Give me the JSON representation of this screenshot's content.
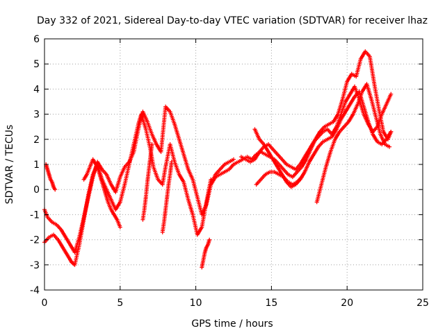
{
  "chart_data": {
    "type": "scatter",
    "title": "Day 332 of 2021, Sidereal Day-to-day VTEC variation (SDTVAR) for receiver lhaz",
    "xlabel": "GPS time / hours",
    "ylabel": "SDTVAR / TECUs",
    "xlim": [
      0,
      25
    ],
    "ylim": [
      -4,
      6
    ],
    "x_ticks": [
      "0",
      "5",
      "10",
      "15",
      "20",
      "25"
    ],
    "y_ticks": [
      "-4",
      "-3",
      "-2",
      "-1",
      "0",
      "1",
      "2",
      "3",
      "4",
      "5",
      "6"
    ],
    "grid": true,
    "marker": "+",
    "color": "#ff0000",
    "series": [
      {
        "x": [
          0.0,
          0.3,
          0.6,
          0.9,
          1.2,
          1.5,
          1.8,
          2.0,
          2.3,
          2.6,
          2.9,
          3.2,
          3.5,
          3.8,
          4.1,
          4.4,
          4.7,
          5.0,
          5.3,
          5.6,
          5.9,
          6.2,
          6.4,
          6.7,
          7.0,
          7.2,
          7.5,
          7.8,
          8.0,
          8.3,
          8.6,
          8.9,
          9.2,
          9.5,
          9.8,
          10.1,
          10.4,
          10.7,
          11.0
        ],
        "y": [
          -2.1,
          -1.9,
          -1.8,
          -2.0,
          -2.3,
          -2.6,
          -2.9,
          -3.0,
          -2.2,
          -1.2,
          -0.2,
          0.6,
          1.0,
          0.4,
          0.0,
          -0.4,
          -0.8,
          -0.5,
          0.2,
          1.0,
          1.8,
          2.6,
          3.0,
          2.4,
          1.6,
          0.9,
          0.4,
          0.2,
          0.9,
          1.8,
          1.1,
          0.6,
          0.3,
          -0.4,
          -1.0,
          -1.8,
          -1.5,
          -0.5,
          0.4
        ]
      },
      {
        "x": [
          0.0,
          0.2,
          0.5,
          0.8,
          1.1,
          1.4,
          1.7,
          2.0,
          2.3,
          2.6,
          2.9,
          3.2,
          3.5,
          3.8,
          4.1,
          4.4,
          4.7,
          5.0,
          5.3,
          5.6,
          5.9,
          6.2,
          6.5,
          6.8,
          7.1,
          7.4,
          7.7,
          8.0,
          8.3,
          8.6,
          8.9,
          9.2,
          9.5,
          9.8,
          10.1,
          10.4,
          10.7,
          11.0,
          11.3,
          11.6,
          11.9,
          12.2,
          12.5
        ],
        "y": [
          -0.8,
          -1.1,
          -1.3,
          -1.4,
          -1.6,
          -1.9,
          -2.2,
          -2.5,
          -1.9,
          -1.1,
          -0.3,
          0.5,
          1.1,
          0.8,
          0.6,
          0.2,
          -0.1,
          0.5,
          0.9,
          1.1,
          1.5,
          2.4,
          3.1,
          2.7,
          2.2,
          1.8,
          1.5,
          3.3,
          3.1,
          2.6,
          2.0,
          1.4,
          0.8,
          0.4,
          -0.3,
          -1.0,
          -0.6,
          0.2,
          0.6,
          0.8,
          1.0,
          1.1,
          1.2
        ]
      },
      {
        "x": [
          0.1,
          0.2,
          0.3,
          0.4,
          0.5,
          0.6,
          0.7
        ],
        "y": [
          1.0,
          0.8,
          0.6,
          0.4,
          0.3,
          0.1,
          0.0
        ]
      },
      {
        "x": [
          2.6,
          2.8,
          3.0,
          3.2,
          3.4,
          3.6,
          3.8,
          4.0,
          4.2,
          4.4,
          4.6,
          4.8,
          5.0
        ],
        "y": [
          0.4,
          0.6,
          0.9,
          1.2,
          1.0,
          0.7,
          0.3,
          -0.1,
          -0.5,
          -0.8,
          -1.0,
          -1.2,
          -1.5
        ]
      },
      {
        "x": [
          6.5,
          6.6,
          6.7,
          6.8,
          6.9,
          7.0,
          7.1
        ],
        "y": [
          -1.2,
          -0.8,
          -0.3,
          0.3,
          0.8,
          1.3,
          1.8
        ]
      },
      {
        "x": [
          7.8,
          7.9,
          8.0,
          8.1,
          8.2,
          8.3,
          8.4
        ],
        "y": [
          -1.7,
          -1.3,
          -0.8,
          -0.3,
          0.2,
          0.6,
          1.1
        ]
      },
      {
        "x": [
          10.4,
          10.5,
          10.6,
          10.7,
          10.8,
          10.9
        ],
        "y": [
          -3.1,
          -2.8,
          -2.5,
          -2.3,
          -2.2,
          -2.0
        ]
      },
      {
        "x": [
          11.0,
          11.3,
          11.6,
          11.9,
          12.2,
          12.5,
          12.8,
          13.1,
          13.4,
          13.7,
          14.0,
          14.3,
          14.6,
          14.9,
          15.2,
          15.5,
          15.8,
          16.1,
          16.4,
          16.7,
          17.0,
          17.3,
          17.6,
          17.9,
          18.2,
          18.5,
          18.8,
          19.1,
          19.4,
          19.7,
          20.0,
          20.3,
          20.6,
          20.9,
          21.2,
          21.5,
          21.8,
          22.1,
          22.4,
          22.7,
          22.9
        ],
        "y": [
          0.2,
          0.5,
          0.6,
          0.7,
          0.8,
          1.0,
          1.1,
          1.2,
          1.3,
          1.2,
          1.4,
          1.5,
          1.4,
          1.3,
          1.2,
          1.0,
          0.8,
          0.6,
          0.5,
          0.7,
          0.9,
          1.2,
          1.6,
          2.0,
          2.3,
          2.5,
          2.6,
          2.7,
          3.0,
          3.6,
          4.3,
          4.6,
          4.5,
          5.2,
          5.5,
          5.3,
          4.2,
          3.2,
          2.3,
          2.0,
          2.3
        ]
      },
      {
        "x": [
          13.0,
          13.3,
          13.6,
          13.9,
          14.2,
          14.5,
          14.8,
          15.1,
          15.4,
          15.7,
          16.0,
          16.3,
          16.6,
          16.9,
          17.2,
          17.5,
          17.8,
          18.1,
          18.4,
          18.7,
          19.0,
          19.3,
          19.6,
          19.9,
          20.2,
          20.5,
          20.8,
          21.1,
          21.4,
          21.7,
          22.0,
          22.3,
          22.6,
          22.9
        ],
        "y": [
          1.3,
          1.2,
          1.1,
          1.2,
          1.5,
          1.7,
          1.8,
          1.6,
          1.4,
          1.2,
          1.0,
          0.9,
          0.8,
          1.0,
          1.3,
          1.6,
          1.9,
          2.1,
          2.3,
          2.4,
          2.2,
          2.5,
          3.0,
          3.5,
          3.8,
          4.1,
          3.6,
          3.0,
          2.6,
          2.3,
          2.5,
          3.0,
          3.4,
          3.8
        ]
      },
      {
        "x": [
          13.9,
          14.2,
          14.5,
          14.8,
          15.1,
          15.4,
          15.7,
          16.0,
          16.3,
          16.6,
          16.9,
          17.2,
          17.5,
          17.8,
          18.1,
          18.4,
          18.7,
          19.0,
          19.3,
          19.6,
          19.9,
          20.2,
          20.5,
          20.8,
          21.1,
          21.4,
          21.7,
          22.0,
          22.3,
          22.6,
          22.9
        ],
        "y": [
          2.4,
          2.0,
          1.8,
          1.5,
          1.2,
          0.9,
          0.6,
          0.3,
          0.1,
          0.2,
          0.4,
          0.7,
          1.1,
          1.4,
          1.7,
          1.9,
          2.0,
          2.1,
          2.4,
          2.8,
          3.1,
          3.4,
          3.7,
          3.9,
          3.3,
          2.7,
          2.2,
          1.9,
          1.8,
          2.0,
          2.3
        ]
      },
      {
        "x": [
          14.0,
          14.3,
          14.6,
          14.9,
          15.2,
          15.5,
          15.8,
          16.1,
          16.4,
          16.7,
          17.0
        ],
        "y": [
          0.2,
          0.4,
          0.6,
          0.7,
          0.7,
          0.6,
          0.5,
          0.3,
          0.2,
          0.3,
          0.5
        ]
      },
      {
        "x": [
          18.0,
          18.3,
          18.6,
          18.9,
          19.2,
          19.5,
          19.8,
          20.1,
          20.4,
          20.7,
          21.0,
          21.3,
          21.6,
          21.9,
          22.2,
          22.5,
          22.8
        ],
        "y": [
          -0.5,
          0.2,
          0.9,
          1.5,
          2.0,
          2.3,
          2.5,
          2.7,
          3.0,
          3.4,
          3.9,
          4.2,
          3.6,
          2.9,
          2.2,
          1.8,
          1.7
        ]
      }
    ]
  }
}
